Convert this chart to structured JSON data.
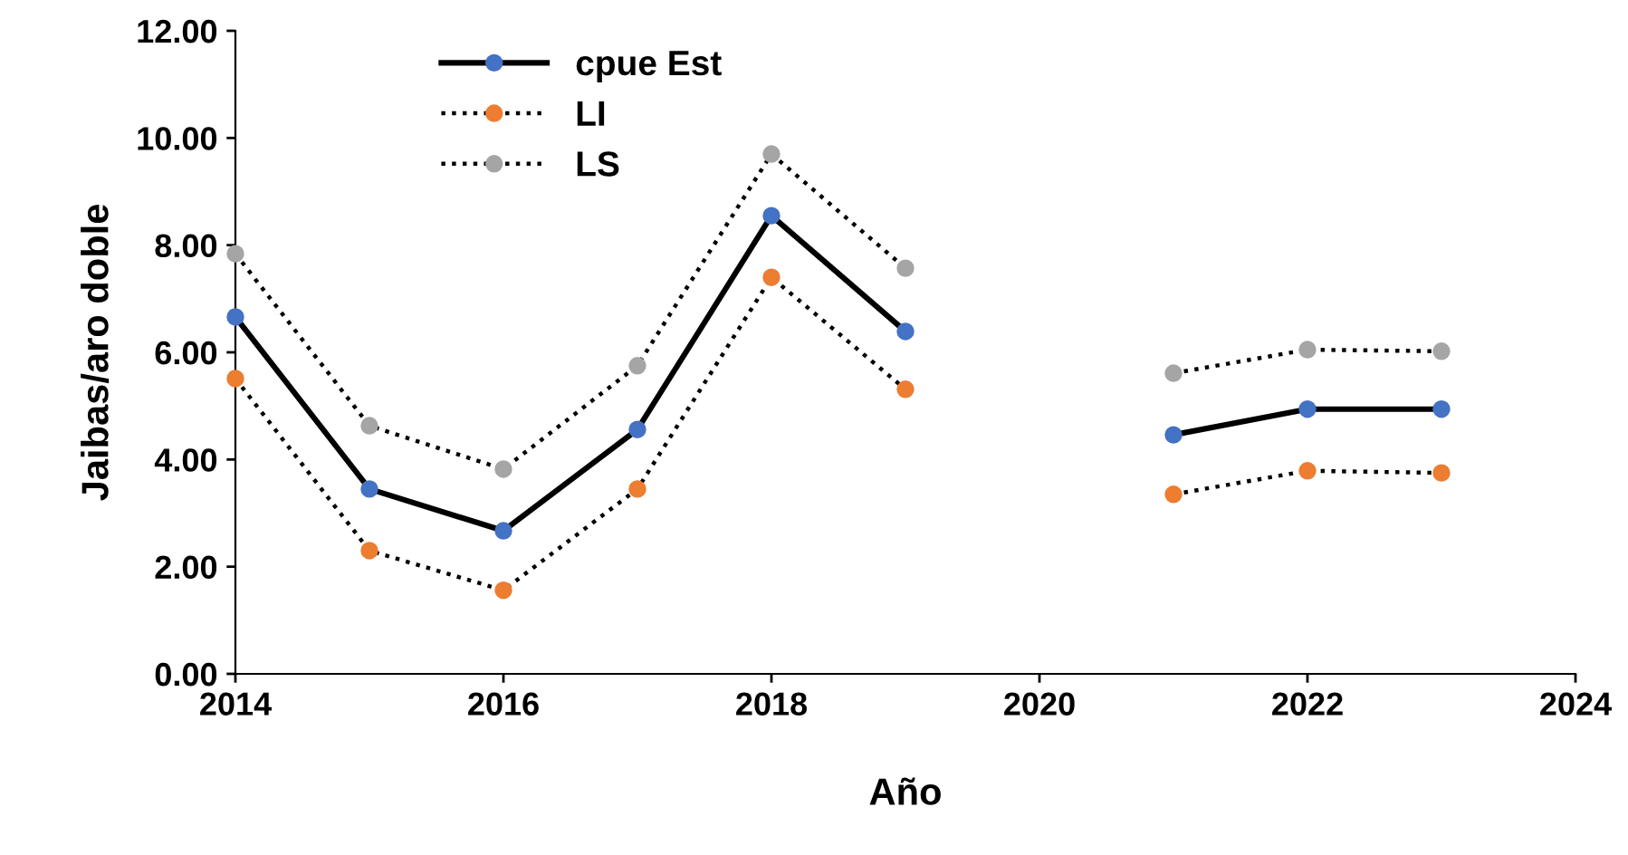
{
  "chart_data": {
    "type": "line",
    "xlabel": "Año",
    "ylabel": "Jaibas/aro doble",
    "x": [
      2014,
      2015,
      2016,
      2017,
      2018,
      2019,
      2020,
      2021,
      2022,
      2023
    ],
    "series": [
      {
        "name": "cpue Est",
        "color": "#4472c4",
        "line_style": "solid",
        "values": [
          6.66,
          3.45,
          2.67,
          4.56,
          8.55,
          6.39,
          null,
          4.46,
          4.94,
          4.94
        ]
      },
      {
        "name": "LI",
        "color": "#ed7d31",
        "line_style": "dotted",
        "values": [
          5.51,
          2.3,
          1.56,
          3.45,
          7.4,
          5.31,
          null,
          3.35,
          3.79,
          3.75
        ]
      },
      {
        "name": "LS",
        "color": "#a5a5a5",
        "line_style": "dotted",
        "values": [
          7.84,
          4.63,
          3.82,
          5.75,
          9.7,
          7.57,
          null,
          5.61,
          6.05,
          6.02
        ]
      }
    ],
    "xlim": [
      2014,
      2024
    ],
    "xticks": [
      2014,
      2016,
      2018,
      2020,
      2022,
      2024
    ],
    "ylim": [
      0,
      12
    ],
    "yticks": [
      {
        "value": 0,
        "label": "0.00"
      },
      {
        "value": 2,
        "label": "2.00"
      },
      {
        "value": 4,
        "label": "4.00"
      },
      {
        "value": 6,
        "label": "6.00"
      },
      {
        "value": 8,
        "label": "8.00"
      },
      {
        "value": 10,
        "label": "10.00"
      },
      {
        "value": 12,
        "label": "12.00"
      }
    ],
    "grid": false,
    "legend": "top left",
    "marker": "circle"
  }
}
